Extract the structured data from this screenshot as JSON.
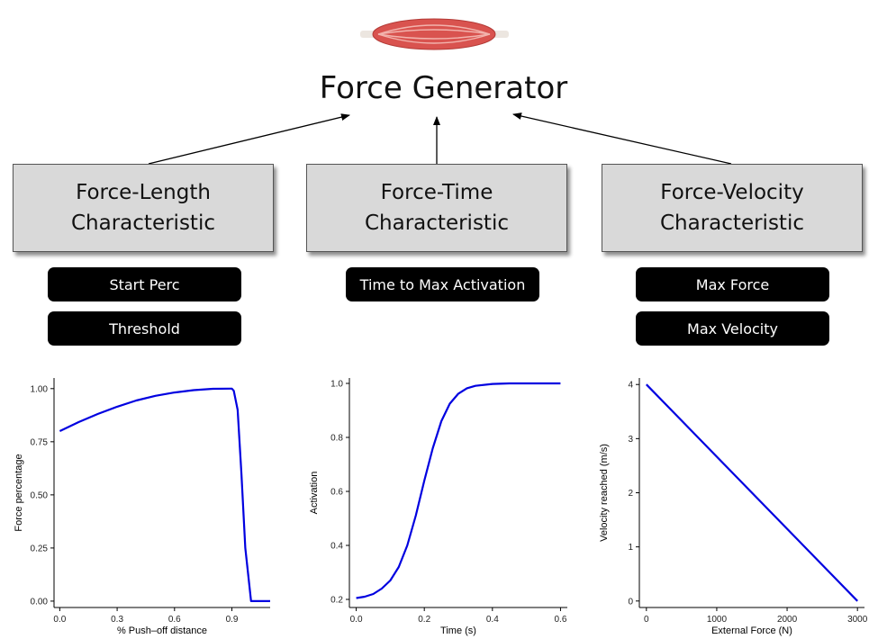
{
  "title": "Force Generator",
  "boxes": [
    {
      "line1": "Force-Length",
      "line2": "Characteristic"
    },
    {
      "line1": "Force-Time",
      "line2": "Characteristic"
    },
    {
      "line1": "Force-Velocity",
      "line2": "Characteristic"
    }
  ],
  "params": {
    "start_perc": "Start Perc",
    "threshold": "Threshold",
    "time_to_max": "Time to Max Activation",
    "max_force": "Max Force",
    "max_velocity": "Max Velocity"
  },
  "colors": {
    "box_fill": "#d9d9d9",
    "pill_fill": "#000000",
    "line": "#0000e0",
    "muscle": "#d9534f"
  },
  "chart_data": [
    {
      "type": "line",
      "xlabel": "% Push–off distance",
      "ylabel": "Force percentage",
      "xlim": [
        -0.03,
        1.1
      ],
      "ylim": [
        -0.03,
        1.05
      ],
      "xticks": [
        0.0,
        0.3,
        0.6,
        0.9
      ],
      "xtick_labels": [
        "0.0",
        "0.3",
        "0.6",
        "0.9"
      ],
      "yticks": [
        0.0,
        0.25,
        0.5,
        0.75,
        1.0
      ],
      "ytick_labels": [
        "0.00",
        "0.25",
        "0.50",
        "0.75",
        "1.00"
      ],
      "x": [
        0.0,
        0.1,
        0.2,
        0.3,
        0.4,
        0.5,
        0.6,
        0.7,
        0.8,
        0.9,
        0.91,
        0.93,
        0.95,
        0.97,
        1.0,
        1.02,
        1.05,
        1.1
      ],
      "y": [
        0.8,
        0.843,
        0.881,
        0.915,
        0.944,
        0.966,
        0.982,
        0.993,
        0.999,
        1.0,
        0.99,
        0.9,
        0.6,
        0.25,
        0.0,
        0.0,
        0.0,
        0.0
      ]
    },
    {
      "type": "line",
      "xlabel": "Time (s)",
      "ylabel": "Activation",
      "xlim": [
        -0.02,
        0.62
      ],
      "ylim": [
        0.17,
        1.02
      ],
      "xticks": [
        0.0,
        0.2,
        0.4,
        0.6
      ],
      "xtick_labels": [
        "0.0",
        "0.2",
        "0.4",
        "0.6"
      ],
      "yticks": [
        0.2,
        0.4,
        0.6,
        0.8,
        1.0
      ],
      "ytick_labels": [
        "0.2",
        "0.4",
        "0.6",
        "0.8",
        "1.0"
      ],
      "x": [
        0.0,
        0.025,
        0.05,
        0.075,
        0.1,
        0.125,
        0.15,
        0.175,
        0.2,
        0.225,
        0.25,
        0.275,
        0.3,
        0.325,
        0.35,
        0.4,
        0.45,
        0.5,
        0.55,
        0.6
      ],
      "y": [
        0.205,
        0.21,
        0.22,
        0.24,
        0.27,
        0.32,
        0.4,
        0.51,
        0.64,
        0.76,
        0.86,
        0.925,
        0.962,
        0.982,
        0.991,
        0.998,
        1.0,
        1.0,
        1.0,
        1.0
      ]
    },
    {
      "type": "line",
      "xlabel": "External Force (N)",
      "ylabel": "Velocity reached (m/s)",
      "xlim": [
        -100,
        3100
      ],
      "ylim": [
        -0.12,
        4.12
      ],
      "xticks": [
        0,
        1000,
        2000,
        3000
      ],
      "xtick_labels": [
        "0",
        "1000",
        "2000",
        "3000"
      ],
      "yticks": [
        0,
        1,
        2,
        3,
        4
      ],
      "ytick_labels": [
        "0",
        "1",
        "2",
        "3",
        "4"
      ],
      "x": [
        0,
        3000
      ],
      "y": [
        4,
        0
      ]
    }
  ]
}
